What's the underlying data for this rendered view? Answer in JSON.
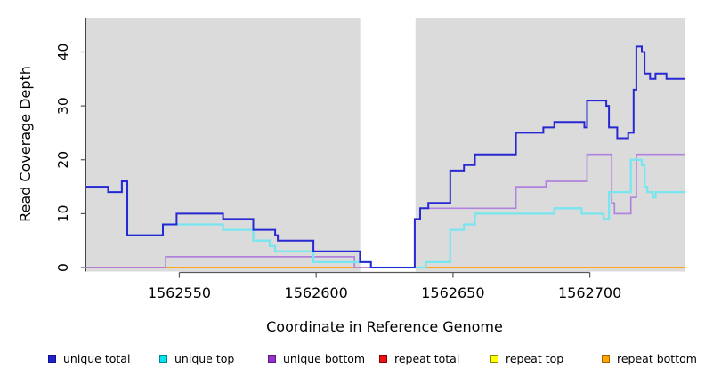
{
  "chart_data": {
    "type": "line",
    "subtype": "step-coverage",
    "title": "",
    "xlabel": "Coordinate in Reference Genome",
    "ylabel": "Read Coverage Depth",
    "x_ticks": [
      1562550,
      1562600,
      1562650,
      1562700
    ],
    "y_ticks": [
      0,
      10,
      20,
      30,
      40
    ],
    "xlim": [
      1562515.8,
      1562734.6
    ],
    "ylim": [
      0,
      46.8
    ],
    "grid": false,
    "panel_background": "#DBDBDB",
    "masked_region": {
      "x0": 1562616.1,
      "x1": 1562636.3,
      "color": "#FFFFFF"
    },
    "zero_overlap_segment": {
      "note": "repeat/unique zero lines overlap at left edge",
      "x0": 1562515.8,
      "x1": 1562545,
      "color": "#D4517D"
    },
    "series": [
      {
        "name": "repeat top",
        "color": "#FFFF00",
        "values_note": "constant 0, hidden under repeat bottom",
        "points": [
          [
            1562515.8,
            0
          ]
        ]
      },
      {
        "name": "repeat bottom",
        "color": "#FFA51E",
        "points": [
          [
            1562515.8,
            0
          ]
        ]
      },
      {
        "name": "repeat total",
        "color": "#D4517D",
        "values_note": "constant 0, visible only left of 1562545",
        "points": [
          [
            1562515.8,
            0
          ]
        ],
        "xend": 1562545
      },
      {
        "name": "unique bottom",
        "color": "#B183DC",
        "points": [
          [
            1562515.8,
            0
          ],
          [
            1562545,
            2
          ],
          [
            1562614,
            0
          ],
          [
            1562636,
            9
          ],
          [
            1562638,
            11
          ],
          [
            1562673,
            15
          ],
          [
            1562684,
            16
          ],
          [
            1562699,
            21
          ],
          [
            1562708,
            12
          ],
          [
            1562709,
            10
          ],
          [
            1562715,
            13
          ],
          [
            1562717,
            21
          ]
        ]
      },
      {
        "name": "unique top",
        "color": "#78E6EF",
        "points": [
          [
            1562515.8,
            15
          ],
          [
            1562524,
            14
          ],
          [
            1562529,
            16
          ],
          [
            1562531,
            6
          ],
          [
            1562544,
            8
          ],
          [
            1562566,
            7
          ],
          [
            1562577,
            5
          ],
          [
            1562583,
            4
          ],
          [
            1562585,
            3
          ],
          [
            1562599,
            1
          ],
          [
            1562620,
            0
          ],
          [
            1562640,
            1
          ],
          [
            1562649,
            7
          ],
          [
            1562654,
            8
          ],
          [
            1562658,
            10
          ],
          [
            1562687,
            11
          ],
          [
            1562697,
            10
          ],
          [
            1562705,
            9
          ],
          [
            1562707,
            14
          ],
          [
            1562715,
            20
          ],
          [
            1562719,
            19
          ],
          [
            1562720,
            15
          ],
          [
            1562721,
            14
          ],
          [
            1562723,
            13
          ],
          [
            1562724,
            14
          ]
        ]
      },
      {
        "name": "unique total",
        "color": "#2828D2",
        "points": [
          [
            1562515.8,
            15
          ],
          [
            1562524,
            14
          ],
          [
            1562529,
            16
          ],
          [
            1562531,
            6
          ],
          [
            1562544,
            8
          ],
          [
            1562549,
            10
          ],
          [
            1562566,
            9
          ],
          [
            1562577,
            7
          ],
          [
            1562585,
            6
          ],
          [
            1562586,
            5
          ],
          [
            1562599,
            3
          ],
          [
            1562616,
            1
          ],
          [
            1562620,
            0
          ],
          [
            1562636,
            9
          ],
          [
            1562638,
            11
          ],
          [
            1562641,
            12
          ],
          [
            1562649,
            18
          ],
          [
            1562654,
            19
          ],
          [
            1562658,
            21
          ],
          [
            1562673,
            25
          ],
          [
            1562683,
            26
          ],
          [
            1562687,
            27
          ],
          [
            1562698,
            26
          ],
          [
            1562699,
            31
          ],
          [
            1562706,
            30
          ],
          [
            1562707,
            26
          ],
          [
            1562710,
            24
          ],
          [
            1562714,
            25
          ],
          [
            1562716,
            33
          ],
          [
            1562717,
            41
          ],
          [
            1562719,
            40
          ],
          [
            1562720,
            36
          ],
          [
            1562722,
            35
          ],
          [
            1562724,
            36
          ],
          [
            1562728,
            35
          ]
        ]
      }
    ],
    "legend": {
      "position": "bottom",
      "items": [
        {
          "label": "unique total",
          "fill": "#2121CE",
          "border": "#11118A"
        },
        {
          "label": "unique top",
          "fill": "#00E5EE",
          "border": "#00848E"
        },
        {
          "label": "unique bottom",
          "fill": "#9932CC",
          "border": "#5E1A7E"
        },
        {
          "label": "repeat total",
          "fill": "#EE1111",
          "border": "#8B0000"
        },
        {
          "label": "repeat top",
          "fill": "#FFFF00",
          "border": "#8A8A00"
        },
        {
          "label": "repeat bottom",
          "fill": "#FFA500",
          "border": "#A86400"
        }
      ]
    },
    "tick_labels_x": [
      "1562550",
      "1562600",
      "1562650",
      "1562700"
    ],
    "tick_labels_y": [
      "0",
      "10",
      "20",
      "30",
      "40"
    ]
  }
}
